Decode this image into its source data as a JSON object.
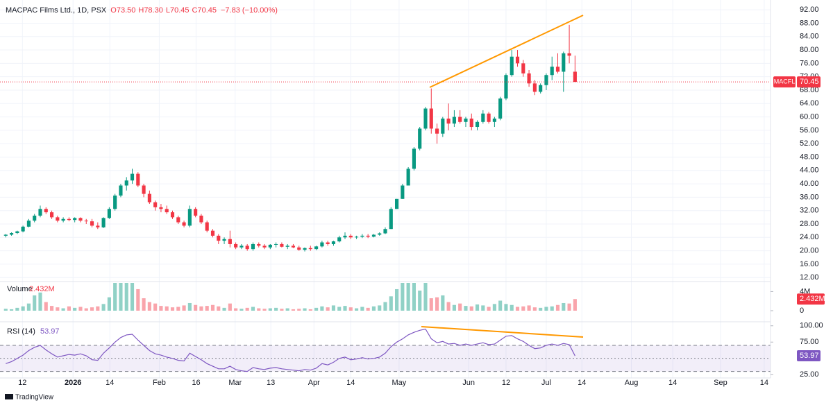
{
  "chart_data": {
    "type": "candlestick",
    "title": "MACPAC Films Ltd., 1D, PSX",
    "ohlc_text": [
      "O73.50",
      "H78.30",
      "L70.45",
      "C70.45"
    ],
    "change_text": "−7.83 (−10.00%)",
    "symbol": "MACFL",
    "last_price": 70.45,
    "last_price_label": "70.45",
    "up_color": "#089981",
    "down_color": "#f23645",
    "grid": true,
    "x": [
      0,
      1,
      2,
      3,
      4,
      5,
      6,
      7,
      8,
      9,
      10,
      11,
      12,
      13,
      14,
      15,
      16,
      17,
      18,
      19,
      20,
      21,
      22,
      23,
      24,
      25,
      26,
      27,
      28,
      29,
      30,
      31,
      32,
      33,
      34,
      35,
      36,
      37,
      38,
      39,
      40,
      41,
      42,
      43,
      44,
      45,
      46,
      47,
      48,
      49,
      50,
      51,
      52,
      53,
      54,
      55,
      56,
      57,
      58,
      59,
      60,
      61,
      62,
      63,
      64,
      65,
      66,
      67,
      68,
      69,
      70,
      71,
      72,
      73,
      74,
      75,
      76,
      77,
      78,
      79,
      80,
      81,
      82,
      83,
      84,
      85,
      86,
      87,
      88,
      89,
      90,
      91,
      92,
      93,
      94,
      95,
      96,
      97,
      98,
      99
    ],
    "xlim": [
      -1,
      133
    ],
    "xticks": [
      {
        "value": 2.9,
        "label": "12"
      },
      {
        "value": 11.7,
        "label": "2026"
      },
      {
        "value": 18.1,
        "label": "14"
      },
      {
        "value": 26.7,
        "label": "Feb"
      },
      {
        "value": 33.1,
        "label": "16"
      },
      {
        "value": 39.9,
        "label": "Mar"
      },
      {
        "value": 46.1,
        "label": "13"
      },
      {
        "value": 53.6,
        "label": "Apr"
      },
      {
        "value": 60.0,
        "label": "14"
      },
      {
        "value": 68.4,
        "label": "May"
      },
      {
        "value": 80.5,
        "label": "Jun"
      },
      {
        "value": 87.0,
        "label": "12"
      },
      {
        "value": 94.0,
        "label": "Jul"
      },
      {
        "value": 100.2,
        "label": "14"
      },
      {
        "value": 108.8,
        "label": "Aug"
      },
      {
        "value": 116.0,
        "label": "14"
      },
      {
        "value": 124.3,
        "label": "Sep"
      },
      {
        "value": 131.9,
        "label": "14"
      }
    ],
    "open": [
      24.5,
      24.8,
      25.3,
      25.8,
      27.2,
      29,
      30.5,
      32.5,
      31.5,
      30,
      29,
      29.5,
      29.2,
      29.8,
      29,
      28.8,
      27.5,
      27,
      29.8,
      32.5,
      36.5,
      39.5,
      41,
      43,
      39.5,
      37,
      34.5,
      33,
      32.5,
      31.5,
      30,
      28.5,
      27.5,
      32.5,
      30.5,
      28.5,
      26,
      24.5,
      23,
      23.5,
      22,
      21,
      21.5,
      20.5,
      22,
      21.5,
      21,
      21.8,
      22,
      21.2,
      21.5,
      21,
      20.3,
      20.8,
      20.5,
      21.3,
      22.5,
      22,
      22.8,
      24,
      24.5,
      24,
      24.2,
      24.5,
      24.2,
      24.8,
      25.2,
      26.5,
      32.5,
      35.5,
      39.5,
      44.5,
      50.5,
      56.5,
      62.5,
      56.5,
      55,
      59.5,
      58,
      60,
      58.5,
      59.5,
      57,
      58.5,
      61,
      58.5,
      59.5,
      65.5,
      72.5,
      78,
      76,
      73,
      70,
      67.5,
      69.5,
      72.5,
      75,
      73.5,
      79,
      73.5
    ],
    "high": [
      25,
      25.5,
      26,
      27.5,
      29.5,
      31,
      33.5,
      33,
      32,
      30.5,
      30,
      30,
      30,
      30,
      29.5,
      29.5,
      28.5,
      30,
      33,
      37,
      40,
      42,
      44.5,
      43.5,
      40,
      38,
      35,
      34,
      33.5,
      32,
      30.5,
      29,
      33.5,
      33,
      31,
      29,
      26.5,
      25,
      24,
      26,
      22.5,
      22,
      22,
      22.5,
      22.5,
      22,
      22,
      22.5,
      22.5,
      22,
      22,
      21.5,
      21,
      21.5,
      21.5,
      23,
      23,
      23,
      24.5,
      25.5,
      25,
      24.5,
      25,
      25,
      25,
      25.5,
      27,
      33,
      35.5,
      40,
      45,
      51,
      57,
      63,
      68.5,
      58,
      60,
      64,
      62,
      62,
      60,
      61,
      59,
      62,
      61.5,
      60,
      66,
      73,
      80,
      80,
      77,
      74,
      71,
      70,
      73,
      78,
      79,
      79.5,
      87.5,
      78.3
    ],
    "low": [
      24,
      24.5,
      25,
      25.5,
      27,
      28.5,
      30,
      31,
      29.5,
      28.5,
      28.5,
      28.8,
      28.5,
      28.5,
      28,
      27,
      26.5,
      26.8,
      29.5,
      32,
      36,
      38,
      40,
      39,
      36,
      34,
      32,
      31.5,
      31,
      29.5,
      28,
      27,
      27,
      30,
      28,
      25.5,
      24,
      22,
      22,
      21,
      20.5,
      20.5,
      20,
      20,
      21,
      20.5,
      20.5,
      21,
      21,
      20.5,
      20.8,
      20,
      19.8,
      20,
      20.2,
      21,
      21.5,
      21.5,
      22.5,
      23.5,
      23.5,
      23.5,
      23.8,
      23.8,
      24,
      24.5,
      25,
      26.5,
      32.5,
      35.5,
      39.5,
      44,
      50,
      56,
      55,
      52,
      54,
      56,
      57,
      58,
      57,
      56,
      56,
      58,
      58,
      57,
      59,
      65,
      72,
      75,
      72,
      69,
      66.5,
      67,
      68,
      71,
      73,
      67.5,
      76,
      70.45
    ],
    "close": [
      24.8,
      25.3,
      25.8,
      27.2,
      29,
      30.5,
      32.5,
      31.5,
      30,
      29,
      29.5,
      29.2,
      29.8,
      29,
      28.8,
      27.5,
      27,
      29.8,
      32.5,
      36.5,
      39.5,
      41,
      43,
      39.5,
      37,
      34.5,
      33,
      32.5,
      31.5,
      30,
      28.5,
      27.5,
      32.5,
      30.5,
      28.5,
      26,
      24.5,
      23,
      23.5,
      22,
      21,
      21.5,
      20.5,
      22,
      21.5,
      21,
      21.8,
      22,
      21.2,
      21.5,
      21,
      20.3,
      20.8,
      20.5,
      21.3,
      22.5,
      22,
      22.8,
      24,
      24.5,
      24,
      24.2,
      24.5,
      24.2,
      24.8,
      25.2,
      26.5,
      32.5,
      35.5,
      39.5,
      44.5,
      50.5,
      56.5,
      62.5,
      56.5,
      55,
      59.5,
      58,
      60,
      58.5,
      59.5,
      57,
      58.5,
      61,
      58.5,
      59.5,
      65.5,
      72.5,
      78,
      76,
      73,
      70,
      67.5,
      69.5,
      72.5,
      75,
      73.5,
      79,
      78.28,
      70.45
    ],
    "ylim": [
      10.8,
      94.1
    ],
    "yticks": [
      {
        "value": 12,
        "label": "12.00"
      },
      {
        "value": 16,
        "label": "16.00"
      },
      {
        "value": 20,
        "label": "20.00"
      },
      {
        "value": 24,
        "label": "24.00"
      },
      {
        "value": 28,
        "label": "28.00"
      },
      {
        "value": 32,
        "label": "32.00"
      },
      {
        "value": 36,
        "label": "36.00"
      },
      {
        "value": 40,
        "label": "40.00"
      },
      {
        "value": 44,
        "label": "44.00"
      },
      {
        "value": 48,
        "label": "48.00"
      },
      {
        "value": 52,
        "label": "52.00"
      },
      {
        "value": 56,
        "label": "56.00"
      },
      {
        "value": 60,
        "label": "60.00"
      },
      {
        "value": 64,
        "label": "64.00"
      },
      {
        "value": 68,
        "label": "68.00"
      },
      {
        "value": 72,
        "label": "72.00"
      },
      {
        "value": 76,
        "label": "76.00"
      },
      {
        "value": 80,
        "label": "80.00"
      },
      {
        "value": 84,
        "label": "84.00"
      },
      {
        "value": 88,
        "label": "88.00"
      },
      {
        "value": 92,
        "label": "92.00"
      }
    ],
    "volume": {
      "name": "Volume",
      "last_label": "2.432M",
      "ylim": [
        0,
        5.8
      ],
      "yticks": [
        {
          "value": 0,
          "label": "0"
        },
        {
          "value": 4,
          "label": "4M"
        }
      ],
      "values": [
        0.4,
        0.3,
        0.6,
        0.9,
        1.5,
        3.2,
        3.8,
        1.8,
        1.0,
        0.7,
        0.5,
        0.9,
        0.6,
        0.8,
        0.5,
        0.7,
        0.9,
        1.4,
        2.8,
        5.8,
        5.8,
        5.8,
        5.8,
        4.5,
        2.6,
        1.8,
        1.5,
        1.0,
        0.9,
        0.7,
        0.8,
        1.1,
        1.6,
        1.2,
        0.9,
        1.0,
        1.2,
        0.9,
        0.6,
        1.5,
        0.5,
        0.4,
        0.6,
        0.8,
        0.5,
        0.4,
        0.5,
        0.6,
        0.4,
        0.5,
        0.3,
        0.4,
        0.5,
        0.3,
        0.6,
        0.9,
        0.7,
        1.1,
        0.8,
        1.0,
        0.7,
        0.5,
        0.8,
        0.6,
        0.9,
        1.1,
        1.8,
        3.0,
        4.5,
        5.8,
        5.8,
        5.8,
        4.2,
        5.8,
        2.6,
        2.8,
        3.2,
        1.8,
        1.2,
        1.5,
        1.0,
        0.9,
        1.3,
        1.1,
        0.8,
        1.4,
        2.1,
        1.4,
        1.2,
        0.8,
        0.9,
        1.1,
        0.7,
        0.6,
        0.8,
        0.9,
        1.2,
        1.6,
        1.5,
        2.432
      ]
    },
    "rsi": {
      "name": "RSI (14)",
      "color": "#7e57c2",
      "last_label": "53.97",
      "ylim": [
        20,
        104
      ],
      "levels": [
        30,
        50,
        70
      ],
      "yticks": [
        {
          "value": 25,
          "label": "25.00"
        },
        {
          "value": 75,
          "label": "75.00"
        },
        {
          "value": 100,
          "label": "100.00"
        }
      ],
      "values": [
        42,
        45,
        50,
        55,
        62,
        67,
        70,
        63,
        57,
        52,
        54,
        56,
        55,
        57,
        54,
        48,
        47,
        58,
        66,
        75,
        82,
        86,
        87,
        78,
        70,
        62,
        57,
        55,
        52,
        50,
        47,
        46,
        58,
        53,
        48,
        42,
        38,
        34,
        34,
        38,
        33,
        31,
        30,
        36,
        34,
        33,
        35,
        36,
        34,
        33,
        32,
        31,
        33,
        32,
        35,
        42,
        40,
        44,
        50,
        52,
        48,
        49,
        51,
        49,
        50,
        52,
        58,
        68,
        75,
        80,
        86,
        90,
        93,
        95,
        80,
        74,
        76,
        72,
        73,
        70,
        72,
        70,
        72,
        74,
        71,
        72,
        78,
        84,
        85,
        80,
        76,
        70,
        65,
        66,
        70,
        72,
        70,
        73,
        71,
        53.97
      ]
    },
    "footer": "TradingView"
  }
}
